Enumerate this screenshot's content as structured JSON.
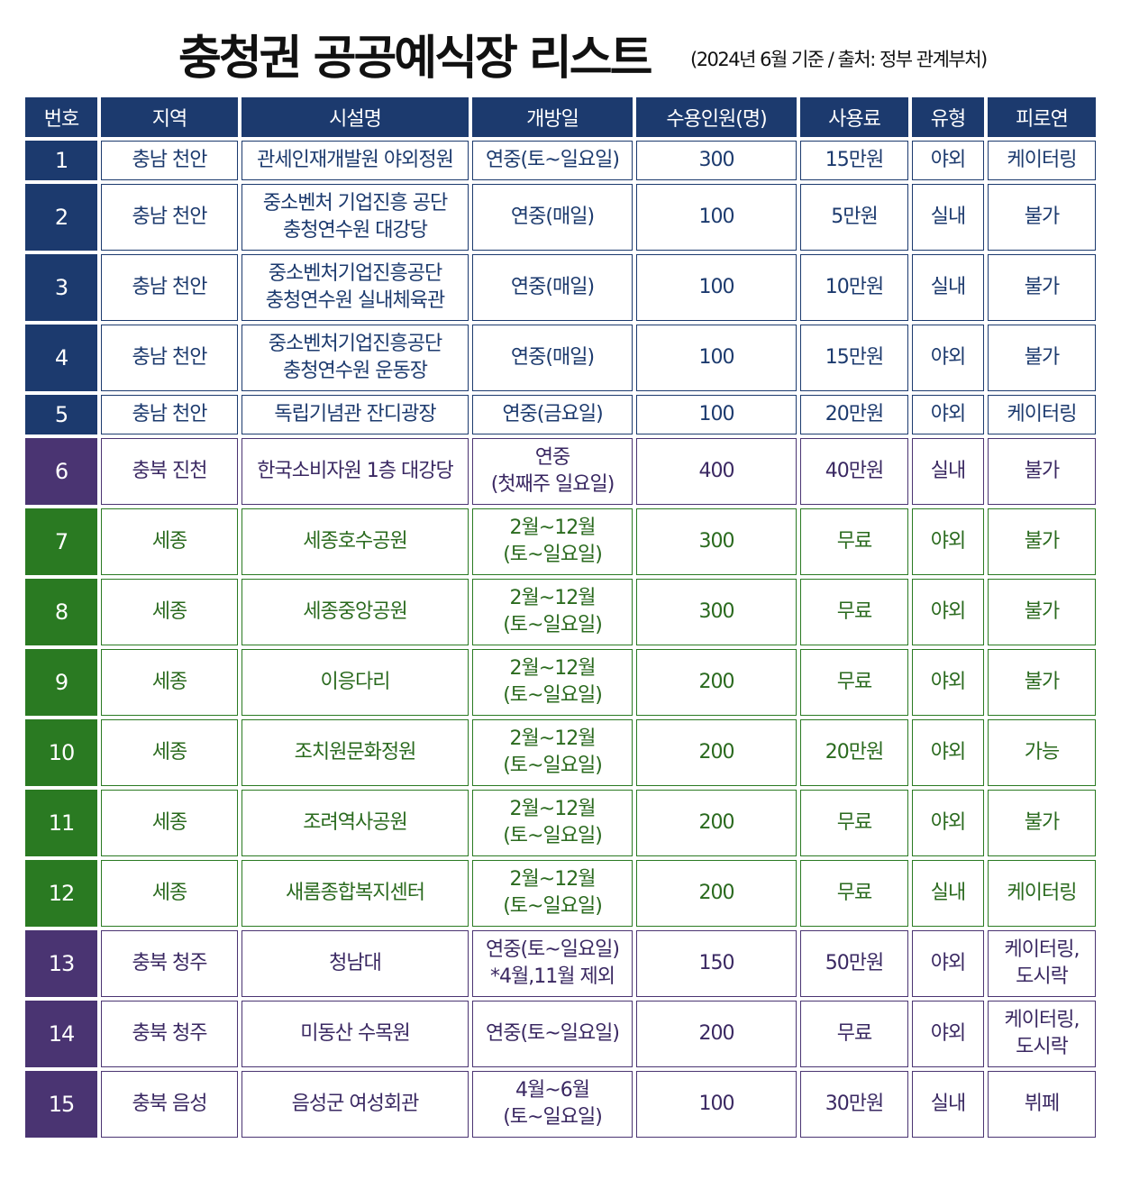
{
  "header": {
    "title": "충청권 공공예식장 리스트",
    "subtitle": "(2024년 6월 기준 / 출처: 정부 관계부처)"
  },
  "table": {
    "columns": [
      "번호",
      "지역",
      "시설명",
      "개방일",
      "수용인원(명)",
      "사용료",
      "유형",
      "피로연"
    ],
    "rows": [
      {
        "no": "1",
        "region": "충남 천안",
        "facility": "관세인재개발원 야외정원",
        "open": "연중(토~일요일)",
        "capacity": "300",
        "fee": "15만원",
        "type": "야외",
        "reception": "케이터링"
      },
      {
        "no": "2",
        "region": "충남 천안",
        "facility": "중소벤처 기업진흥 공단\n충청연수원 대강당",
        "open": "연중(매일)",
        "capacity": "100",
        "fee": "5만원",
        "type": "실내",
        "reception": "불가"
      },
      {
        "no": "3",
        "region": "충남 천안",
        "facility": "중소벤처기업진흥공단\n충청연수원 실내체육관",
        "open": "연중(매일)",
        "capacity": "100",
        "fee": "10만원",
        "type": "실내",
        "reception": "불가"
      },
      {
        "no": "4",
        "region": "충남 천안",
        "facility": "중소벤처기업진흥공단\n충청연수원 운동장",
        "open": "연중(매일)",
        "capacity": "100",
        "fee": "15만원",
        "type": "야외",
        "reception": "불가"
      },
      {
        "no": "5",
        "region": "충남 천안",
        "facility": "독립기념관 잔디광장",
        "open": "연중(금요일)",
        "capacity": "100",
        "fee": "20만원",
        "type": "야외",
        "reception": "케이터링"
      },
      {
        "no": "6",
        "region": "충북 진천",
        "facility": "한국소비자원 1층 대강당",
        "open": "연중\n(첫째주 일요일)",
        "capacity": "400",
        "fee": "40만원",
        "type": "실내",
        "reception": "불가"
      },
      {
        "no": "7",
        "region": "세종",
        "facility": "세종호수공원",
        "open": "2월~12월\n(토~일요일)",
        "capacity": "300",
        "fee": "무료",
        "type": "야외",
        "reception": "불가"
      },
      {
        "no": "8",
        "region": "세종",
        "facility": "세종중앙공원",
        "open": "2월~12월\n(토~일요일)",
        "capacity": "300",
        "fee": "무료",
        "type": "야외",
        "reception": "불가"
      },
      {
        "no": "9",
        "region": "세종",
        "facility": "이응다리",
        "open": "2월~12월\n(토~일요일)",
        "capacity": "200",
        "fee": "무료",
        "type": "야외",
        "reception": "불가"
      },
      {
        "no": "10",
        "region": "세종",
        "facility": "조치원문화정원",
        "open": "2월~12월\n(토~일요일)",
        "capacity": "200",
        "fee": "20만원",
        "type": "야외",
        "reception": "가능"
      },
      {
        "no": "11",
        "region": "세종",
        "facility": "조려역사공원",
        "open": "2월~12월\n(토~일요일)",
        "capacity": "200",
        "fee": "무료",
        "type": "야외",
        "reception": "불가"
      },
      {
        "no": "12",
        "region": "세종",
        "facility": "새롬종합복지센터",
        "open": "2월~12월\n(토~일요일)",
        "capacity": "200",
        "fee": "무료",
        "type": "실내",
        "reception": "케이터링"
      },
      {
        "no": "13",
        "region": "충북 청주",
        "facility": "청남대",
        "open": "연중(토~일요일)\n*4월,11월 제외",
        "capacity": "150",
        "fee": "50만원",
        "type": "야외",
        "reception": "케이터링,\n도시락"
      },
      {
        "no": "14",
        "region": "충북 청주",
        "facility": "미동산 수목원",
        "open": "연중(토~일요일)",
        "capacity": "200",
        "fee": "무료",
        "type": "야외",
        "reception": "케이터링,\n도시락"
      },
      {
        "no": "15",
        "region": "충북 음성",
        "facility": "음성군 여성회관",
        "open": "4월~6월\n(토~일요일)",
        "capacity": "100",
        "fee": "30만원",
        "type": "실내",
        "reception": "뷔페"
      }
    ]
  },
  "colors": {
    "navy": "#1c3a6e",
    "purple": "#4a3472",
    "green": "#2a7a22"
  }
}
